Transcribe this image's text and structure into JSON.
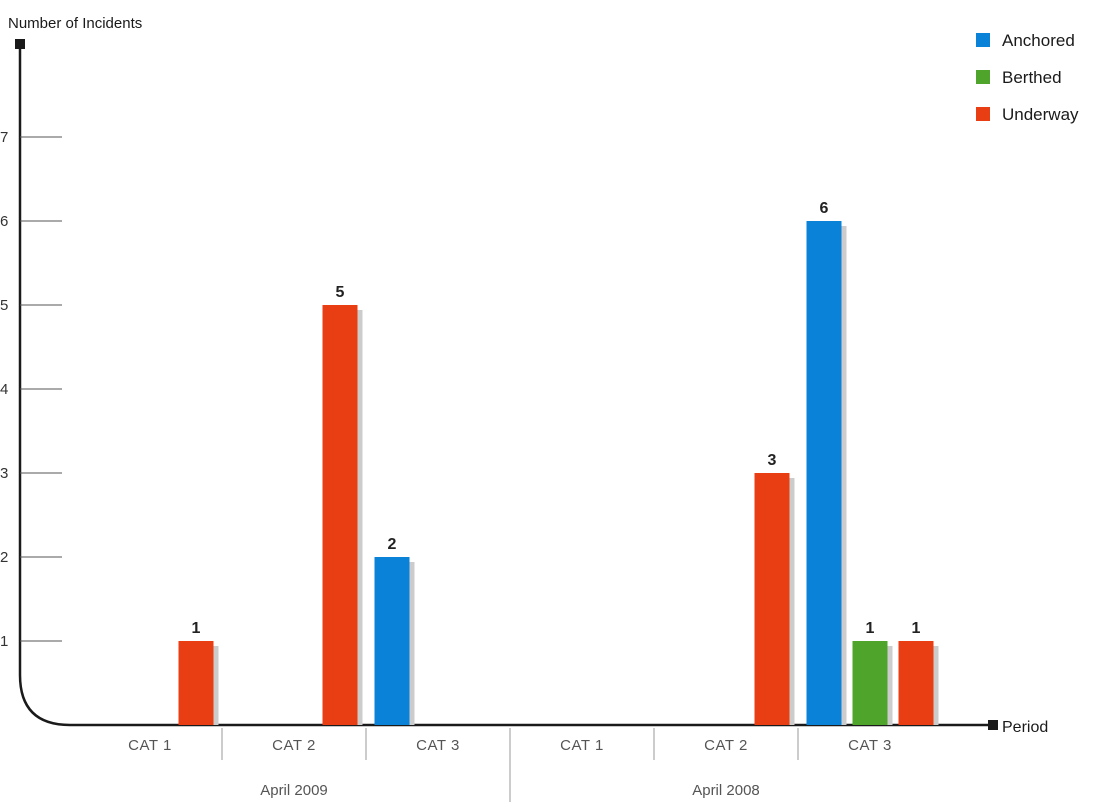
{
  "chart_data": {
    "type": "bar",
    "ylabel": "Number of Incidents",
    "xlabel": "Period",
    "ylim": [
      0,
      7
    ],
    "yticks": [
      1,
      2,
      3,
      4,
      5,
      6,
      7
    ],
    "legend_position": "top-right",
    "groups": [
      {
        "label": "April 2009",
        "categories": [
          "CAT 1",
          "CAT 2",
          "CAT 3"
        ]
      },
      {
        "label": "April 2008",
        "categories": [
          "CAT 1",
          "CAT 2",
          "CAT 3"
        ]
      }
    ],
    "series": [
      {
        "name": "Anchored",
        "color": "#0a82d8",
        "values": [
          [
            0,
            0,
            2
          ],
          [
            0,
            0,
            6
          ]
        ]
      },
      {
        "name": "Berthed",
        "color": "#4fa52c",
        "values": [
          [
            0,
            0,
            0
          ],
          [
            0,
            0,
            1
          ]
        ]
      },
      {
        "name": "Underway",
        "color": "#e93e14",
        "values": [
          [
            1,
            5,
            0
          ],
          [
            0,
            3,
            1
          ]
        ]
      }
    ]
  }
}
